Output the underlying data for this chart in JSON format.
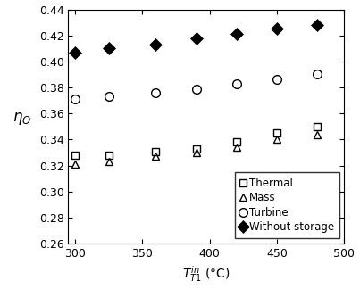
{
  "x": [
    300,
    325,
    360,
    390,
    420,
    450,
    480
  ],
  "thermal": [
    0.328,
    0.328,
    0.331,
    0.333,
    0.338,
    0.345,
    0.35
  ],
  "mass": [
    0.321,
    0.323,
    0.327,
    0.33,
    0.334,
    0.34,
    0.344
  ],
  "turbine": [
    0.371,
    0.373,
    0.376,
    0.379,
    0.383,
    0.386,
    0.39
  ],
  "without_storage": [
    0.407,
    0.41,
    0.413,
    0.418,
    0.421,
    0.425,
    0.428
  ],
  "xlabel": "$T_{T1}^{in}$ (°C)",
  "ylabel": "$\\eta_O$",
  "xlim": [
    295,
    500
  ],
  "ylim": [
    0.26,
    0.44
  ],
  "xticks": [
    300,
    350,
    400,
    450,
    500
  ],
  "yticks": [
    0.26,
    0.28,
    0.3,
    0.32,
    0.34,
    0.36,
    0.38,
    0.4,
    0.42,
    0.44
  ],
  "legend_labels": [
    "Thermal",
    "Mass",
    "Turbine",
    "Without storage"
  ],
  "marker_thermal": "s",
  "marker_mass": "^",
  "marker_turbine": "o",
  "marker_without": "D",
  "color": "black",
  "markersize": 6,
  "markersize_large": 7,
  "linewidth": 0,
  "fillstyle_open": "none",
  "tick_fontsize": 9,
  "label_fontsize": 10,
  "legend_fontsize": 8.5
}
